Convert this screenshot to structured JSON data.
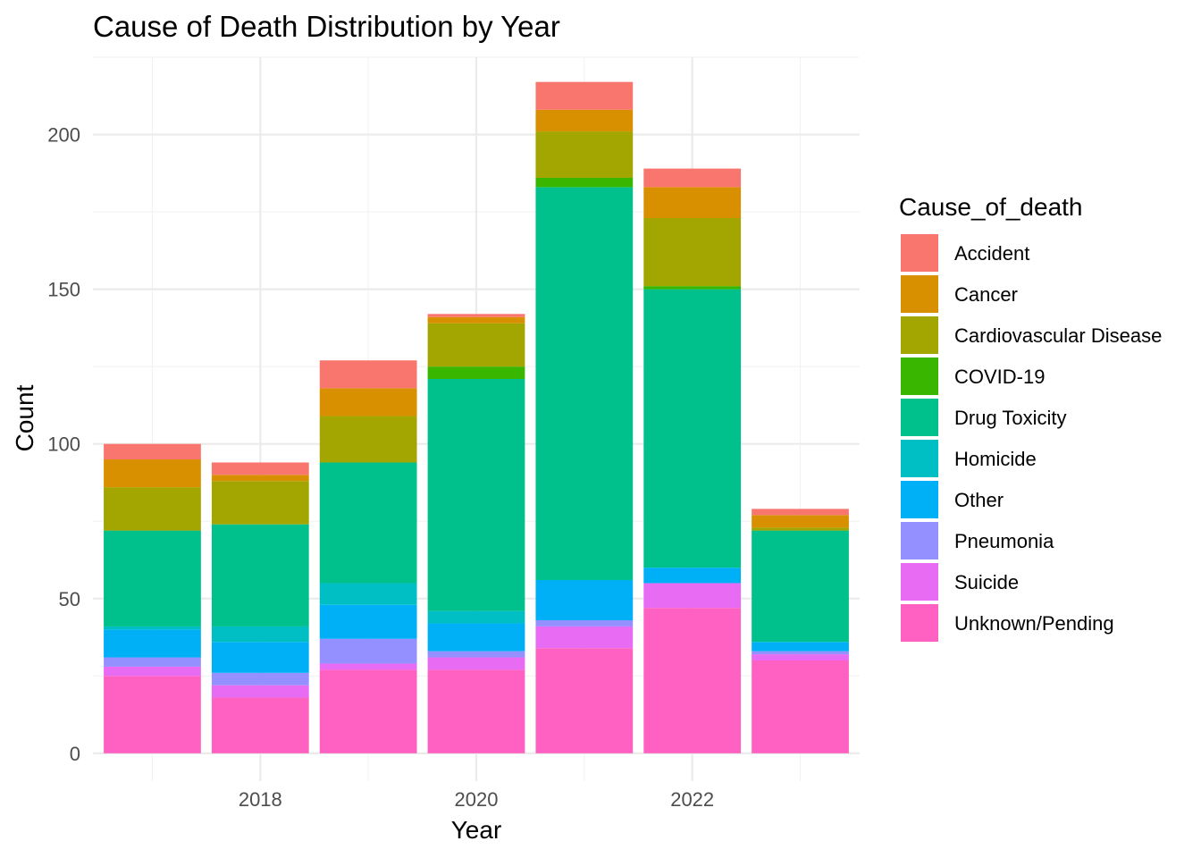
{
  "chart_data": {
    "type": "bar",
    "stacked": true,
    "title": "Cause of Death Distribution by Year",
    "xlabel": "Year",
    "ylabel": "Count",
    "x": [
      2017,
      2018,
      2019,
      2020,
      2021,
      2022,
      2023
    ],
    "x_ticks": [
      "2018",
      "2020",
      "2022"
    ],
    "y_ticks": [
      "0",
      "50",
      "100",
      "150",
      "200"
    ],
    "ylim": [
      -9,
      225
    ],
    "xlim": [
      2016.45,
      2023.55
    ],
    "grid": true,
    "legend_position": "right",
    "legend_title": "Cause_of_death",
    "series": [
      {
        "name": "Unknown/Pending",
        "color": "#FF61C3",
        "values": [
          25,
          18,
          27,
          27,
          34,
          47,
          30
        ]
      },
      {
        "name": "Suicide",
        "color": "#E76BF3",
        "values": [
          3,
          4,
          2,
          4,
          7,
          8,
          2
        ]
      },
      {
        "name": "Pneumonia",
        "color": "#9590FF",
        "values": [
          3,
          4,
          8,
          2,
          2,
          0,
          1
        ]
      },
      {
        "name": "Other",
        "color": "#00B0F6",
        "values": [
          9,
          10,
          11,
          9,
          13,
          5,
          3
        ]
      },
      {
        "name": "Homicide",
        "color": "#00BFC4",
        "values": [
          1,
          5,
          7,
          4,
          0,
          0,
          0
        ]
      },
      {
        "name": "Drug Toxicity",
        "color": "#00C08B",
        "values": [
          31,
          33,
          39,
          75,
          127,
          90,
          36
        ]
      },
      {
        "name": "COVID-19",
        "color": "#39B600",
        "values": [
          0,
          0,
          0,
          4,
          3,
          1,
          0
        ]
      },
      {
        "name": "Cardiovascular Disease",
        "color": "#A3A500",
        "values": [
          14,
          14,
          15,
          14,
          15,
          22,
          1
        ]
      },
      {
        "name": "Cancer",
        "color": "#D89000",
        "values": [
          9,
          2,
          9,
          2,
          7,
          10,
          4
        ]
      },
      {
        "name": "Accident",
        "color": "#F8766D",
        "values": [
          5,
          4,
          9,
          1,
          9,
          6,
          2
        ]
      }
    ]
  }
}
